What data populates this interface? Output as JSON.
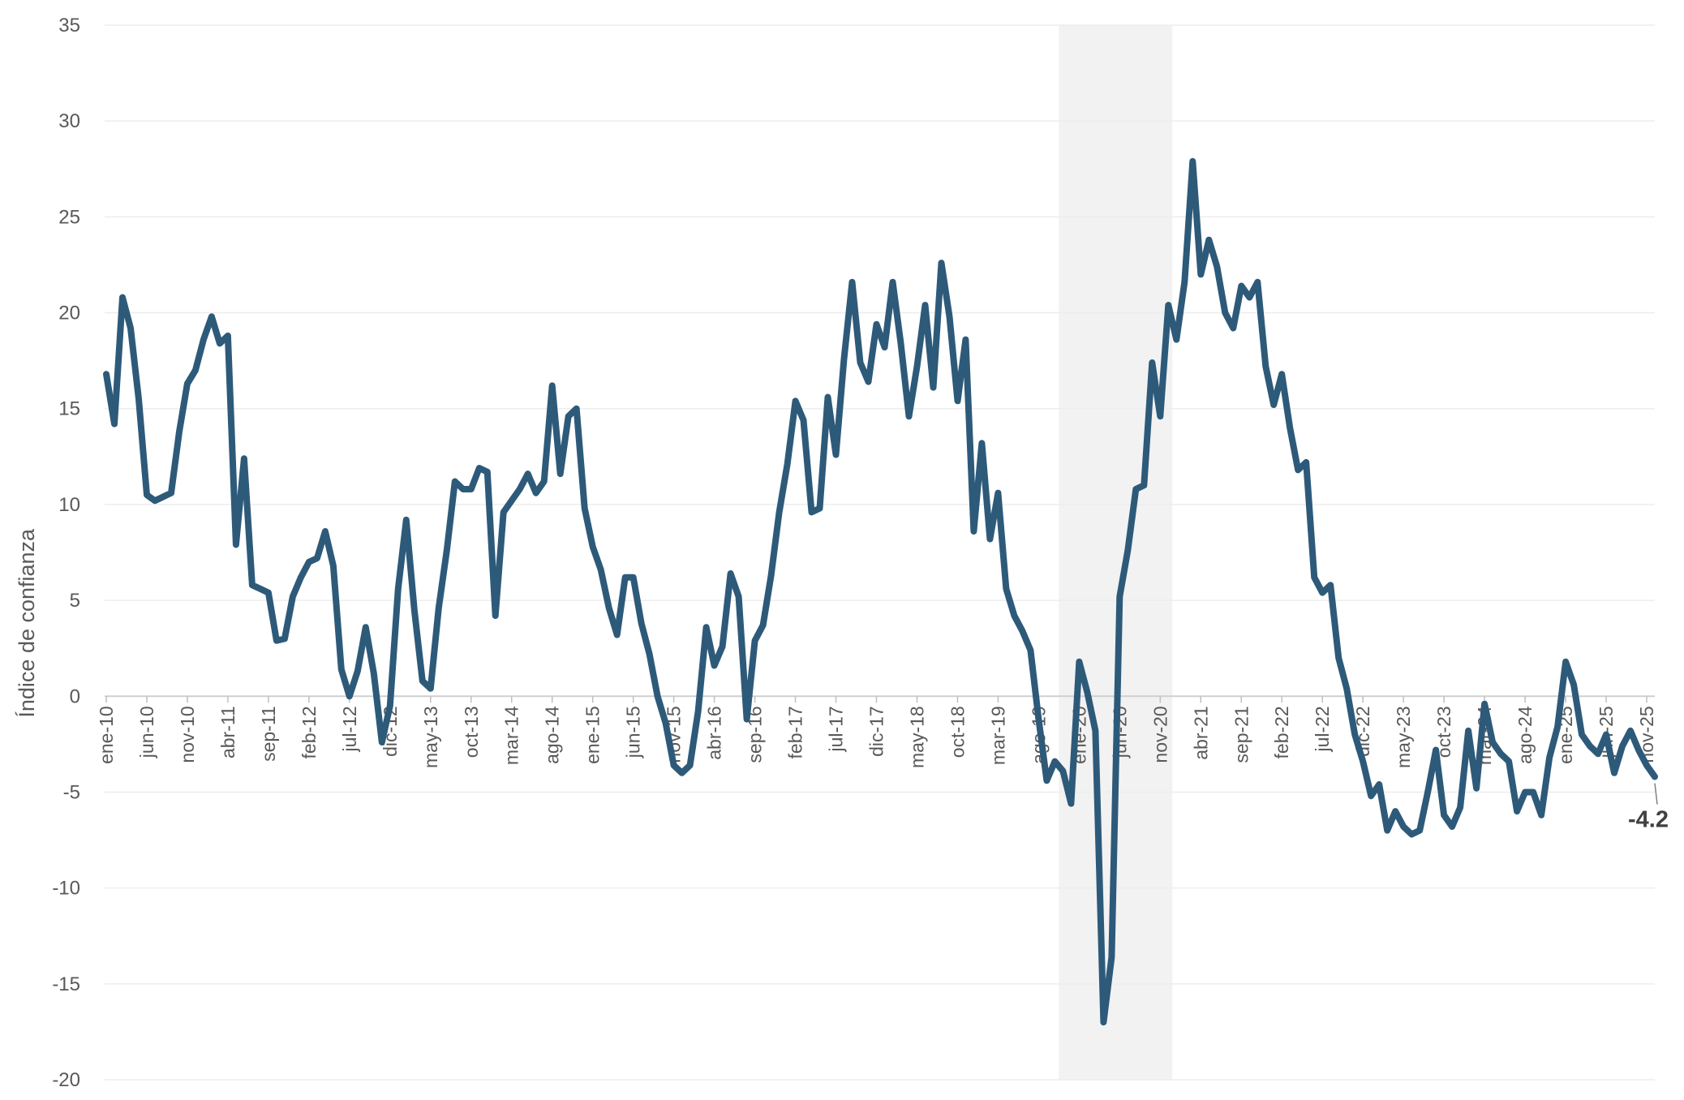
{
  "chart_data": {
    "type": "line",
    "title": "",
    "xlabel": "",
    "ylabel": "Índice de confianza",
    "ylim": [
      -20,
      35
    ],
    "yticks": [
      35,
      30,
      25,
      20,
      15,
      10,
      5,
      0,
      -5,
      -10,
      -15,
      -20
    ],
    "grid": "horizontal",
    "line_color": "#2e5a7a",
    "shade_color": "#f2f2f2",
    "shaded_period": [
      "2019-11",
      "2020-12"
    ],
    "xtick_labels": [
      "ene-10",
      "jun-10",
      "nov-10",
      "abr-11",
      "sep-11",
      "feb-12",
      "jul-12",
      "dic-12",
      "may-13",
      "oct-13",
      "mar-14",
      "ago-14",
      "ene-15",
      "jun-15",
      "nov-15",
      "abr-16",
      "sep-16",
      "feb-17",
      "jul-17",
      "dic-17",
      "may-18",
      "oct-18",
      "mar-19",
      "ago-19",
      "ene-20",
      "jun-20",
      "nov-20",
      "abr-21",
      "sep-21",
      "feb-22",
      "jul-22",
      "dic-22",
      "may-23",
      "oct-23",
      "mar-24",
      "ago-24",
      "ene-25",
      "jun-25",
      "nov-25"
    ],
    "end_label": "-4.2",
    "series": [
      {
        "start": "2010-01",
        "frequency": "monthly",
        "values": [
          16.8,
          14.2,
          20.8,
          19.2,
          15.5,
          10.5,
          10.2,
          10.4,
          10.6,
          13.8,
          16.3,
          17.0,
          18.6,
          19.8,
          18.4,
          18.8,
          7.9,
          12.4,
          5.8,
          5.6,
          5.4,
          2.9,
          3.0,
          5.2,
          6.2,
          7.0,
          7.2,
          8.6,
          6.8,
          1.4,
          0.0,
          1.3,
          3.6,
          1.2,
          -2.4,
          -0.5,
          5.6,
          9.2,
          4.5,
          0.8,
          0.4,
          4.6,
          7.6,
          11.2,
          10.8,
          10.8,
          11.9,
          11.7,
          4.2,
          9.6,
          10.2,
          10.8,
          11.6,
          10.6,
          11.2,
          16.2,
          11.6,
          14.6,
          15.0,
          9.8,
          7.8,
          6.6,
          4.6,
          3.2,
          6.2,
          6.2,
          3.8,
          2.2,
          0.0,
          -1.4,
          -3.6,
          -4.0,
          -3.6,
          -0.8,
          3.6,
          1.6,
          2.6,
          6.4,
          5.2,
          -1.2,
          2.9,
          3.7,
          6.3,
          9.6,
          12.1,
          15.4,
          14.4,
          9.6,
          9.8,
          15.6,
          12.6,
          17.6,
          21.6,
          17.4,
          16.4,
          19.4,
          18.2,
          21.6,
          18.4,
          14.6,
          17.2,
          20.4,
          16.1,
          22.6,
          19.8,
          15.4,
          18.6,
          8.6,
          13.2,
          8.2,
          10.6,
          5.6,
          4.2,
          3.4,
          2.4,
          -1.2,
          -4.4,
          -3.4,
          -3.9,
          -5.6,
          1.8,
          0.2,
          -1.8,
          -17.0,
          -13.6,
          5.2,
          7.6,
          10.8,
          11.0,
          17.4,
          14.6,
          20.4,
          18.6,
          21.6,
          27.9,
          22.0,
          23.8,
          22.4,
          20.0,
          19.2,
          21.4,
          20.8,
          21.6,
          17.2,
          15.2,
          16.8,
          14.0,
          11.8,
          12.2,
          6.2,
          5.4,
          5.8,
          2.0,
          0.4,
          -2.0,
          -3.4,
          -5.2,
          -4.6,
          -7.0,
          -6.0,
          -6.8,
          -7.2,
          -7.0,
          -5.0,
          -2.8,
          -6.2,
          -6.8,
          -5.8,
          -1.8,
          -4.8,
          -0.4,
          -2.4,
          -3.0,
          -3.4,
          -6.0,
          -5.0,
          -5.0,
          -6.2,
          -3.2,
          -1.6,
          1.8,
          0.6,
          -2.0,
          -2.6,
          -3.0,
          -2.0,
          -4.0,
          -2.6,
          -1.8,
          -2.8,
          -3.6,
          -4.2
        ]
      }
    ]
  }
}
